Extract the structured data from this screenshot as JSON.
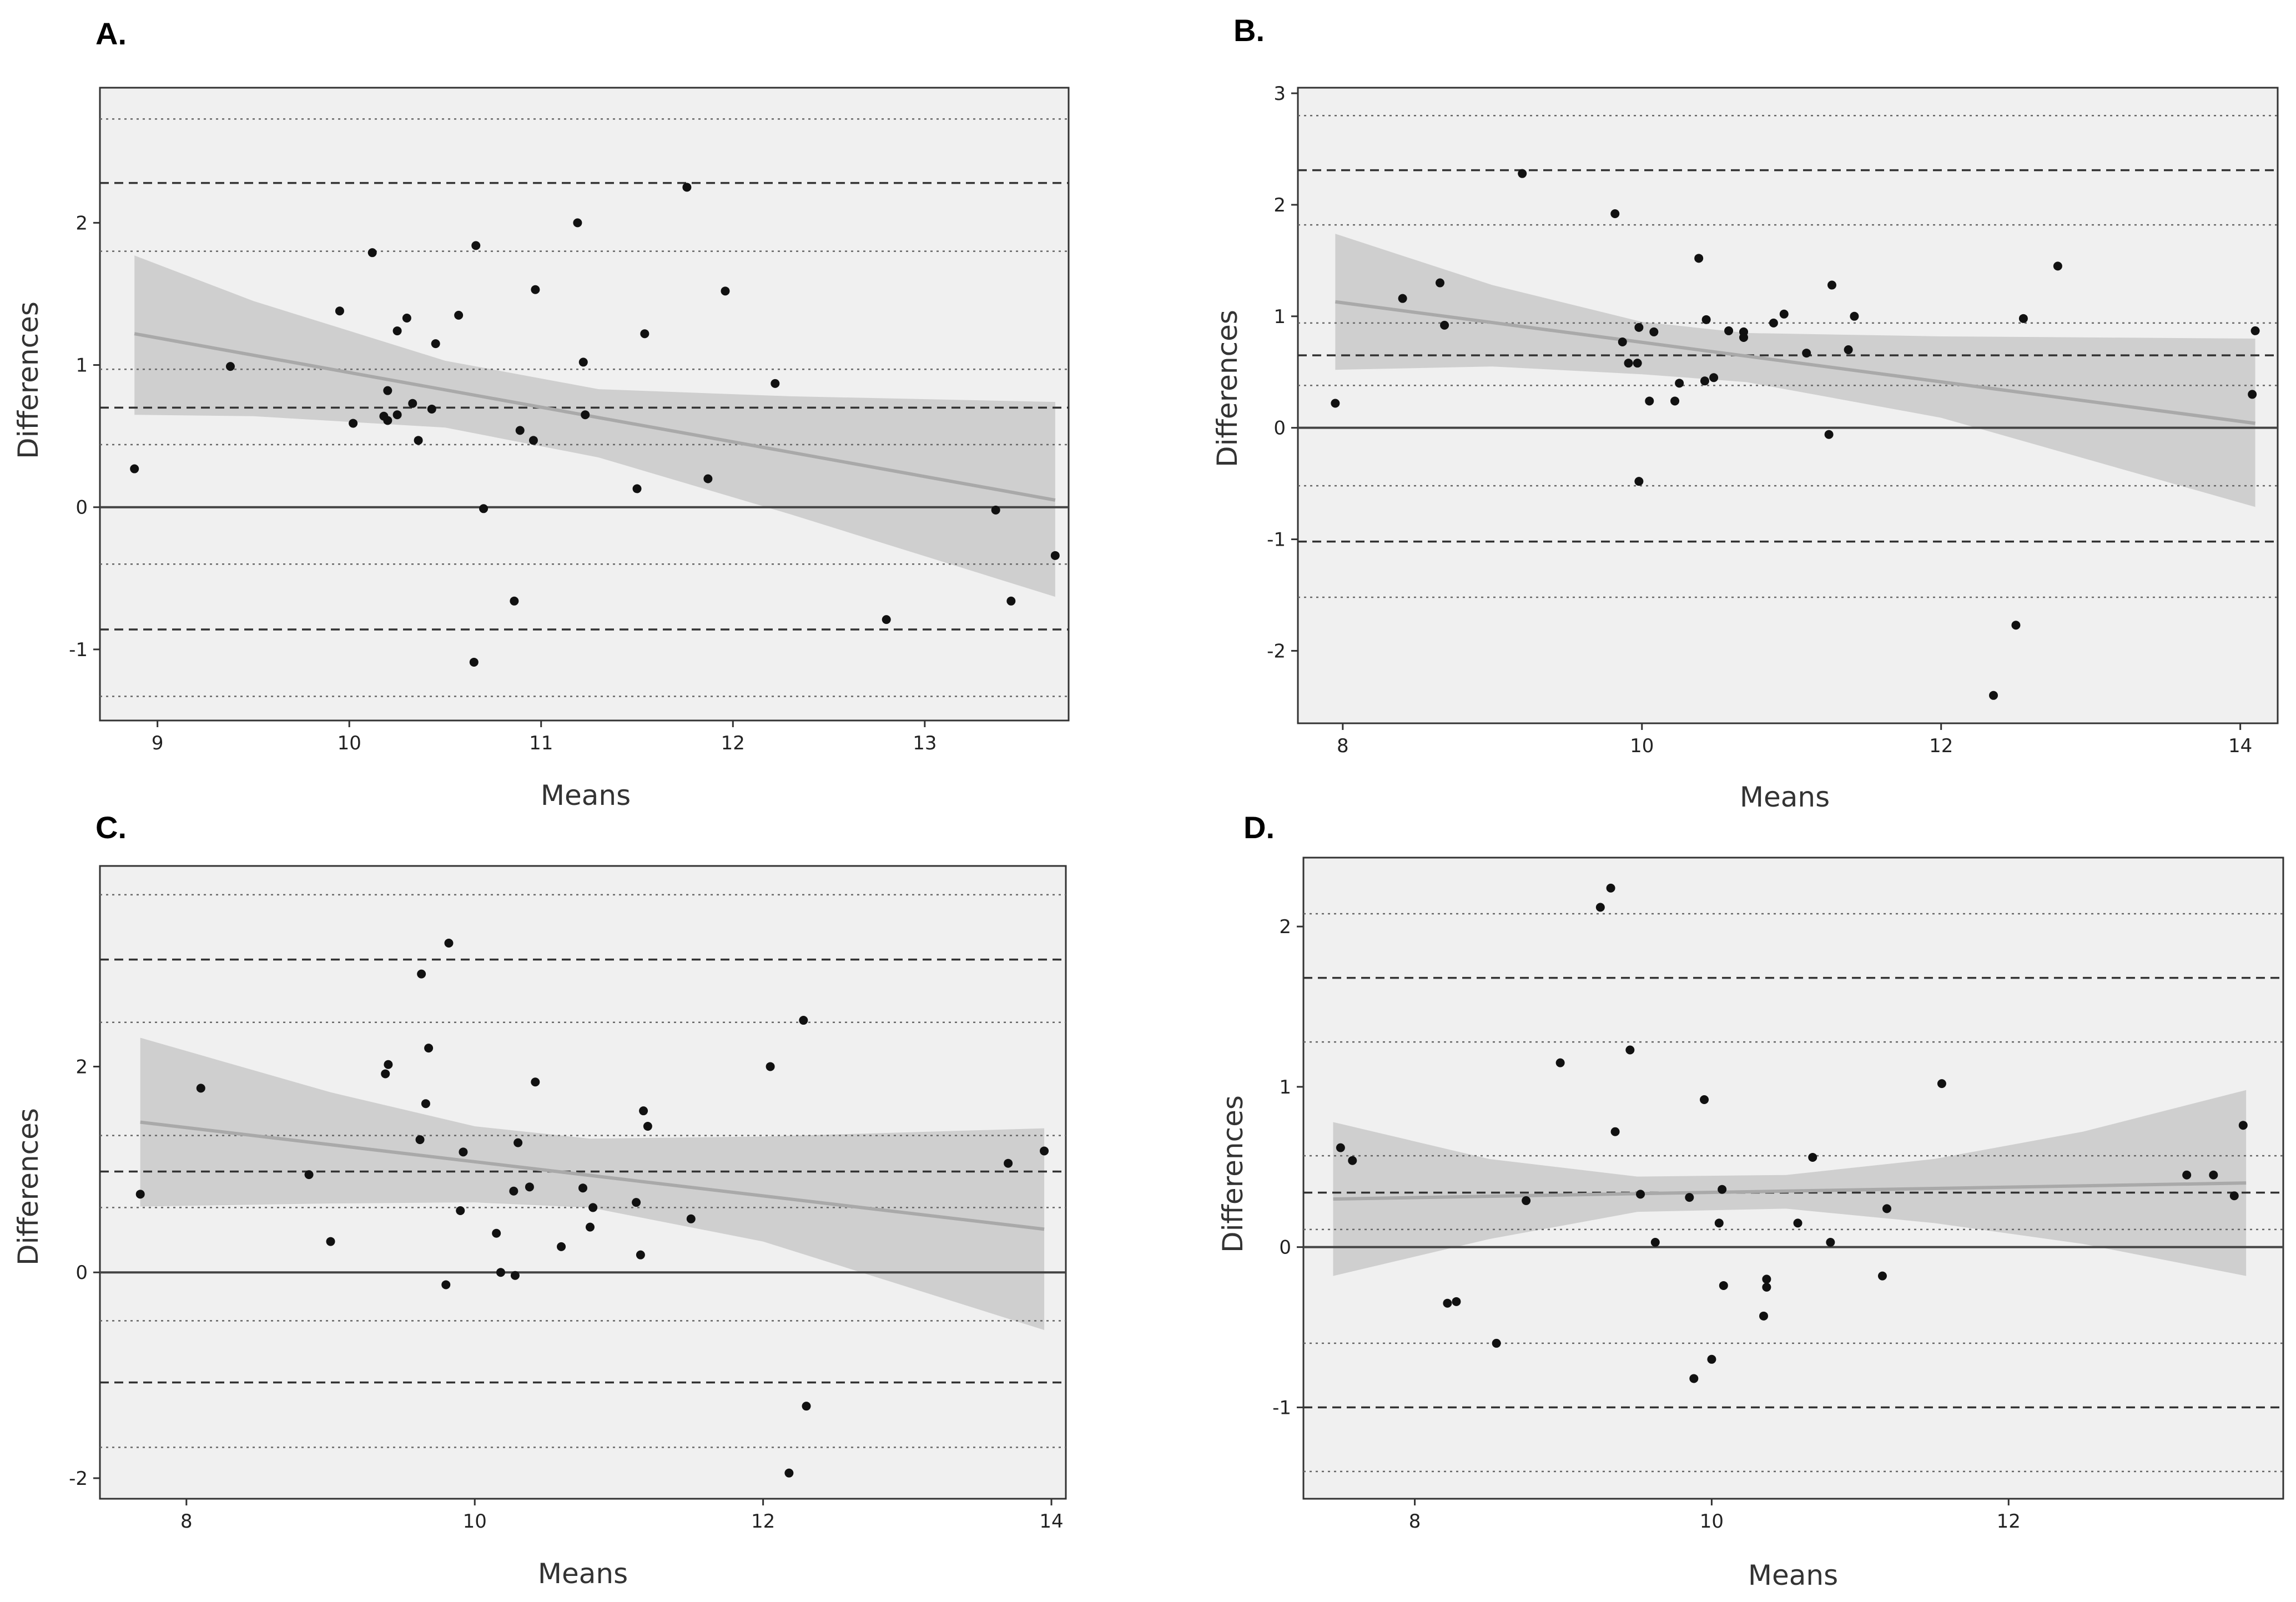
{
  "chart_data": [
    {
      "type": "scatter",
      "panel": "A.",
      "xlabel": "Means",
      "ylabel": "Differences",
      "xlim": [
        8.7,
        13.75
      ],
      "ylim": [
        -1.5,
        2.95
      ],
      "xticks": [
        9,
        10,
        11,
        12,
        13
      ],
      "yticks": [
        -1,
        0,
        1,
        2
      ],
      "xtick_labels": [
        "9",
        "10",
        "11",
        "12",
        "13"
      ],
      "ytick_labels": [
        "-1",
        "0",
        "1",
        "2"
      ],
      "zero_line": 0,
      "mean_line": 0.7,
      "loa_lines": [
        2.28,
        -0.86
      ],
      "ci_lines": [
        2.73,
        1.8,
        0.97,
        0.44,
        -0.4,
        -1.33
      ],
      "regression": {
        "x": [
          8.88,
          13.68
        ],
        "y": [
          1.22,
          0.05
        ]
      },
      "band": {
        "x": [
          8.88,
          9.5,
          10.5,
          11.3,
          12.3,
          13.68
        ],
        "upper": [
          1.77,
          1.45,
          1.03,
          0.83,
          0.78,
          0.74
        ],
        "lower": [
          0.65,
          0.64,
          0.56,
          0.35,
          -0.05,
          -0.63
        ]
      },
      "points": [
        [
          8.88,
          0.27
        ],
        [
          9.38,
          0.99
        ],
        [
          9.95,
          1.38
        ],
        [
          10.02,
          0.59
        ],
        [
          10.12,
          1.79
        ],
        [
          10.18,
          0.64
        ],
        [
          10.2,
          0.82
        ],
        [
          10.2,
          0.61
        ],
        [
          10.25,
          1.24
        ],
        [
          10.25,
          0.65
        ],
        [
          10.3,
          1.33
        ],
        [
          10.33,
          0.73
        ],
        [
          10.36,
          0.47
        ],
        [
          10.43,
          0.69
        ],
        [
          10.45,
          1.15
        ],
        [
          10.57,
          1.35
        ],
        [
          10.65,
          -1.09
        ],
        [
          10.66,
          1.84
        ],
        [
          10.7,
          -0.01
        ],
        [
          10.86,
          -0.66
        ],
        [
          10.89,
          0.54
        ],
        [
          10.96,
          0.47
        ],
        [
          10.97,
          1.53
        ],
        [
          11.19,
          2.0
        ],
        [
          11.22,
          1.02
        ],
        [
          11.23,
          0.65
        ],
        [
          11.5,
          0.13
        ],
        [
          11.54,
          1.22
        ],
        [
          11.76,
          2.25
        ],
        [
          11.87,
          0.2
        ],
        [
          11.96,
          1.52
        ],
        [
          12.22,
          0.87
        ],
        [
          12.8,
          -0.79
        ],
        [
          13.37,
          -0.02
        ],
        [
          13.45,
          -0.66
        ],
        [
          13.68,
          -0.34
        ]
      ]
    },
    {
      "type": "scatter",
      "panel": "B.",
      "xlabel": "Means",
      "ylabel": "Differences",
      "xlim": [
        7.7,
        14.25
      ],
      "ylim": [
        -2.65,
        3.05
      ],
      "xticks": [
        8,
        10,
        12,
        14
      ],
      "yticks": [
        -2,
        -1,
        0,
        1,
        2,
        3
      ],
      "xtick_labels": [
        "8",
        "10",
        "12",
        "14"
      ],
      "ytick_labels": [
        "-2",
        "-1",
        "0",
        "1",
        "2",
        "3"
      ],
      "zero_line": 0,
      "mean_line": 0.65,
      "loa_lines": [
        2.31,
        -1.02
      ],
      "ci_lines": [
        2.8,
        1.82,
        0.94,
        0.38,
        -0.52,
        -1.52
      ],
      "regression": {
        "x": [
          7.95,
          14.1
        ],
        "y": [
          1.13,
          0.04
        ]
      },
      "band": {
        "x": [
          7.95,
          9.0,
          10.0,
          10.7,
          12.0,
          14.1
        ],
        "upper": [
          1.74,
          1.28,
          0.95,
          0.85,
          0.82,
          0.8
        ],
        "lower": [
          0.52,
          0.55,
          0.48,
          0.41,
          0.09,
          -0.71
        ]
      },
      "points": [
        [
          7.95,
          0.22
        ],
        [
          8.4,
          1.16
        ],
        [
          8.65,
          1.3
        ],
        [
          8.68,
          0.92
        ],
        [
          9.2,
          2.28
        ],
        [
          9.82,
          1.92
        ],
        [
          9.87,
          0.77
        ],
        [
          9.91,
          0.58
        ],
        [
          9.97,
          0.58
        ],
        [
          9.98,
          0.9
        ],
        [
          9.98,
          -0.48
        ],
        [
          10.05,
          0.24
        ],
        [
          10.08,
          0.86
        ],
        [
          10.22,
          0.24
        ],
        [
          10.25,
          0.4
        ],
        [
          10.38,
          1.52
        ],
        [
          10.43,
          0.97
        ],
        [
          10.42,
          0.42
        ],
        [
          10.48,
          0.45
        ],
        [
          10.58,
          0.87
        ],
        [
          10.68,
          0.86
        ],
        [
          10.68,
          0.81
        ],
        [
          10.88,
          0.94
        ],
        [
          10.95,
          1.02
        ],
        [
          11.1,
          0.67
        ],
        [
          11.25,
          -0.06
        ],
        [
          11.27,
          1.28
        ],
        [
          11.38,
          0.7
        ],
        [
          11.42,
          1.0
        ],
        [
          12.35,
          -2.4
        ],
        [
          12.5,
          -1.77
        ],
        [
          12.55,
          0.98
        ],
        [
          12.78,
          1.45
        ],
        [
          14.1,
          0.87
        ],
        [
          14.08,
          0.3
        ]
      ]
    },
    {
      "type": "scatter",
      "panel": "C.",
      "xlabel": "Means",
      "ylabel": "Differences",
      "xlim": [
        7.4,
        14.1
      ],
      "ylim": [
        -2.2,
        3.95
      ],
      "xticks": [
        8,
        10,
        12,
        14
      ],
      "yticks": [
        -2,
        0,
        2
      ],
      "xtick_labels": [
        "8",
        "10",
        "12",
        "14"
      ],
      "ytick_labels": [
        "-2",
        "0",
        "2"
      ],
      "zero_line": 0,
      "mean_line": 0.98,
      "loa_lines": [
        3.04,
        -1.07
      ],
      "ci_lines": [
        3.67,
        2.43,
        1.33,
        0.63,
        -0.47,
        -1.7
      ],
      "regression": {
        "x": [
          7.68,
          13.95
        ],
        "y": [
          1.46,
          0.42
        ]
      },
      "band": {
        "x": [
          7.68,
          9.0,
          10.0,
          10.8,
          12.0,
          13.95
        ],
        "upper": [
          2.28,
          1.75,
          1.42,
          1.3,
          1.32,
          1.4
        ],
        "lower": [
          0.64,
          0.67,
          0.68,
          0.63,
          0.3,
          -0.56
        ]
      },
      "points": [
        [
          7.68,
          0.76
        ],
        [
          8.1,
          1.79
        ],
        [
          8.85,
          0.95
        ],
        [
          9.0,
          0.3
        ],
        [
          9.38,
          1.93
        ],
        [
          9.4,
          2.02
        ],
        [
          9.62,
          1.29
        ],
        [
          9.63,
          2.9
        ],
        [
          9.66,
          1.64
        ],
        [
          9.68,
          2.18
        ],
        [
          9.8,
          -0.12
        ],
        [
          9.82,
          3.2
        ],
        [
          9.9,
          0.6
        ],
        [
          9.92,
          1.17
        ],
        [
          10.15,
          0.38
        ],
        [
          10.18,
          0.0
        ],
        [
          10.27,
          0.79
        ],
        [
          10.28,
          -0.03
        ],
        [
          10.3,
          1.26
        ],
        [
          10.38,
          0.83
        ],
        [
          10.42,
          1.85
        ],
        [
          10.6,
          0.25
        ],
        [
          10.75,
          0.82
        ],
        [
          10.8,
          0.44
        ],
        [
          10.82,
          0.63
        ],
        [
          11.12,
          0.68
        ],
        [
          11.15,
          0.17
        ],
        [
          11.17,
          1.57
        ],
        [
          11.2,
          1.42
        ],
        [
          11.5,
          0.52
        ],
        [
          12.05,
          2.0
        ],
        [
          12.18,
          -1.95
        ],
        [
          12.28,
          2.45
        ],
        [
          12.3,
          -1.3
        ],
        [
          13.7,
          1.06
        ],
        [
          13.95,
          1.18
        ]
      ]
    },
    {
      "type": "scatter",
      "panel": "D.",
      "xlabel": "Means",
      "ylabel": "Differences",
      "xlim": [
        7.25,
        13.85
      ],
      "ylim": [
        -1.57,
        2.43
      ],
      "xticks": [
        8,
        10,
        12
      ],
      "yticks": [
        -1,
        0,
        1,
        2
      ],
      "xtick_labels": [
        "8",
        "10",
        "12"
      ],
      "ytick_labels": [
        "-1",
        "0",
        "1",
        "2"
      ],
      "zero_line": 0,
      "mean_line": 0.34,
      "loa_lines": [
        1.68,
        -1.0
      ],
      "ci_lines": [
        2.08,
        1.28,
        0.57,
        0.11,
        -0.6,
        -1.4
      ],
      "regression": {
        "x": [
          7.45,
          13.6
        ],
        "y": [
          0.3,
          0.4
        ]
      },
      "band": {
        "x": [
          7.45,
          8.5,
          9.5,
          10.5,
          11.5,
          12.5,
          13.6
        ],
        "upper": [
          0.78,
          0.55,
          0.44,
          0.45,
          0.55,
          0.72,
          0.98
        ],
        "lower": [
          -0.18,
          0.05,
          0.22,
          0.24,
          0.15,
          0.02,
          -0.18
        ]
      },
      "points": [
        [
          7.5,
          0.62
        ],
        [
          7.58,
          0.54
        ],
        [
          8.22,
          -0.35
        ],
        [
          8.28,
          -0.34
        ],
        [
          8.55,
          -0.6
        ],
        [
          8.75,
          0.29
        ],
        [
          8.98,
          1.15
        ],
        [
          9.25,
          2.12
        ],
        [
          9.32,
          2.24
        ],
        [
          9.35,
          0.72
        ],
        [
          9.45,
          1.23
        ],
        [
          9.52,
          0.33
        ],
        [
          9.62,
          0.03
        ],
        [
          9.85,
          0.31
        ],
        [
          9.88,
          -0.82
        ],
        [
          9.95,
          0.92
        ],
        [
          10.0,
          -0.7
        ],
        [
          10.05,
          0.15
        ],
        [
          10.07,
          0.36
        ],
        [
          10.08,
          -0.24
        ],
        [
          10.35,
          -0.43
        ],
        [
          10.37,
          -0.2
        ],
        [
          10.37,
          -0.25
        ],
        [
          10.58,
          0.15
        ],
        [
          10.68,
          0.56
        ],
        [
          10.8,
          0.03
        ],
        [
          11.15,
          -0.18
        ],
        [
          11.18,
          0.24
        ],
        [
          11.55,
          1.02
        ],
        [
          13.2,
          0.45
        ],
        [
          13.38,
          0.45
        ],
        [
          13.52,
          0.32
        ],
        [
          13.58,
          0.76
        ]
      ]
    }
  ]
}
